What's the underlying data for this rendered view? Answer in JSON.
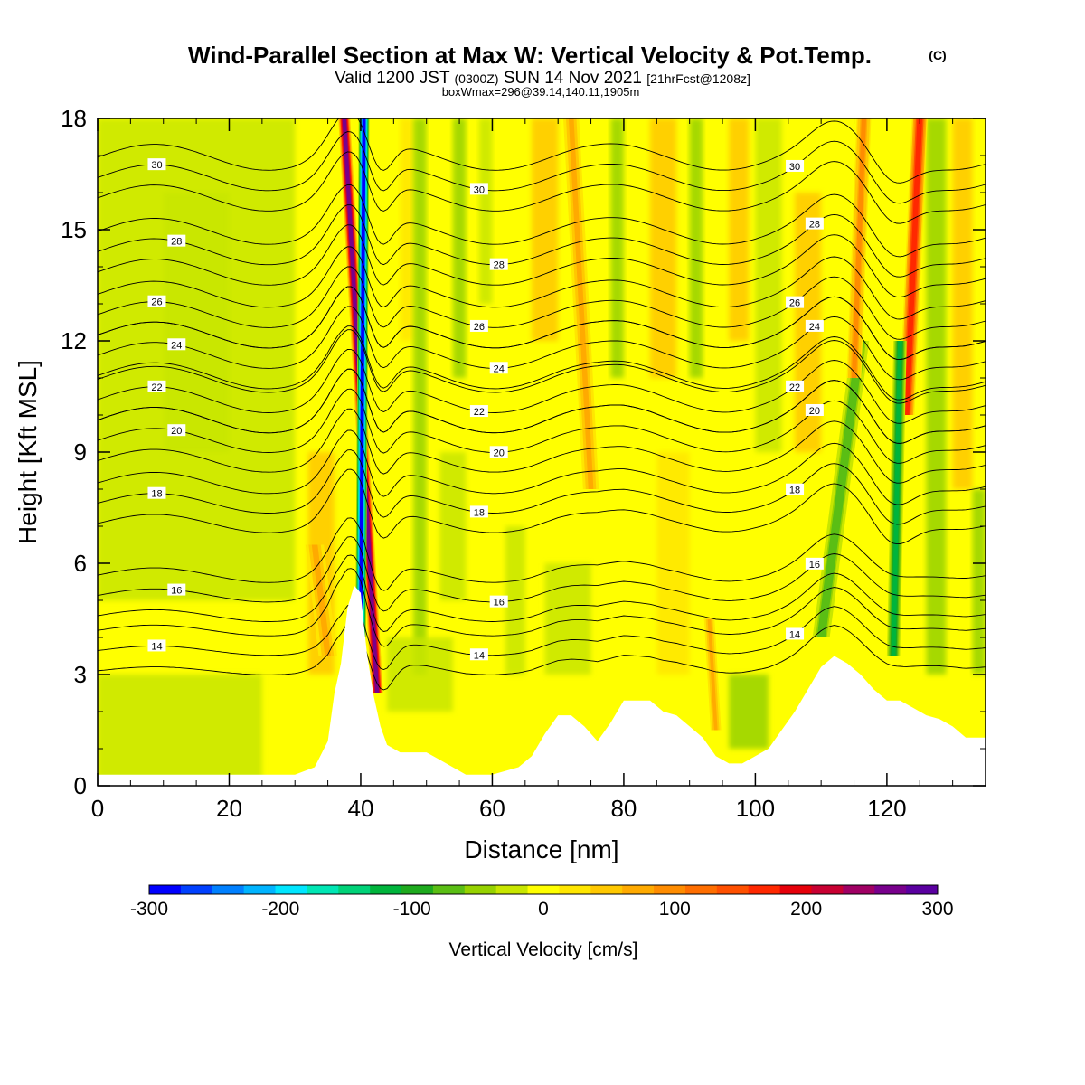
{
  "title": "Wind-Parallel Section at Max W: Vertical Velocity & Pot.Temp.",
  "title_mark": "(C)",
  "subtitle": {
    "valid": "Valid 1200 JST",
    "utc": "(0300Z)",
    "date": "SUN 14 Nov 2021",
    "fcst": "[21hrFcst@1208z]"
  },
  "boxline": "boxWmax=296@39.14,140.11,1905m",
  "chart_data": {
    "type": "heatmap",
    "xlabel": "Distance [nm]",
    "ylabel": "Height [Kft MSL]",
    "xlim": [
      0,
      135
    ],
    "ylim": [
      0,
      18
    ],
    "x_ticks": [
      "0",
      "20",
      "40",
      "60",
      "80",
      "100",
      "120"
    ],
    "x_tick_values": [
      0,
      20,
      40,
      60,
      80,
      100,
      120
    ],
    "y_ticks": [
      "0",
      "3",
      "6",
      "9",
      "12",
      "15",
      "18"
    ],
    "y_tick_values": [
      0,
      3,
      6,
      9,
      12,
      15,
      18
    ],
    "colorbar": {
      "label": "Vertical Velocity [cm/s]",
      "range": [
        -300,
        300
      ],
      "tick_labels": [
        "-300",
        "-200",
        "-100",
        "0",
        "100",
        "200",
        "300"
      ],
      "tick_values": [
        -300,
        -200,
        -100,
        0,
        100,
        200,
        300
      ],
      "colors": [
        "#0000ff",
        "#0040ff",
        "#0080ff",
        "#00b4ff",
        "#00e6ff",
        "#00e6b4",
        "#00d278",
        "#00b43c",
        "#1eaa1e",
        "#5abe14",
        "#96d200",
        "#c8e600",
        "#ffff00",
        "#ffe600",
        "#ffc800",
        "#ffaa00",
        "#ff8c00",
        "#ff6e00",
        "#ff5000",
        "#ff2800",
        "#e6000a",
        "#c80032",
        "#a00064",
        "#78008c",
        "#5a00a0"
      ]
    },
    "theta_contours": [
      {
        "label": "14",
        "base_height": 3.6
      },
      {
        "label": "16",
        "base_height": 5.1
      },
      {
        "label": "18",
        "base_height": 7.6
      },
      {
        "label": "20",
        "base_height": 9.3
      },
      {
        "label": "22",
        "base_height": 10.4
      },
      {
        "label": "24",
        "base_height": 11.6
      },
      {
        "label": "26",
        "base_height": 12.7
      },
      {
        "label": "28",
        "base_height": 14.4
      },
      {
        "label": "30",
        "base_height": 16.4
      }
    ],
    "terrain": {
      "distance": [
        0,
        26,
        30,
        33,
        35,
        36,
        37,
        38,
        39,
        40,
        40.5,
        41,
        42,
        43,
        44,
        45,
        46,
        50,
        52,
        54,
        56,
        58,
        60,
        62,
        64,
        66,
        68,
        70,
        72,
        74,
        76,
        78,
        80,
        82,
        84,
        86,
        88,
        90,
        92,
        94,
        96,
        98,
        100,
        102,
        104,
        106,
        108,
        110,
        112,
        114,
        116,
        118,
        120,
        122,
        124,
        126,
        128,
        130,
        132,
        135
      ],
      "height": [
        0.3,
        0.3,
        0.3,
        0.5,
        1.2,
        2.5,
        3.3,
        4.8,
        5.4,
        5.2,
        4.3,
        3.5,
        2.4,
        1.6,
        1.1,
        1.0,
        0.9,
        0.9,
        0.7,
        0.5,
        0.3,
        0.3,
        0.3,
        0.4,
        0.5,
        0.8,
        1.4,
        1.9,
        1.9,
        1.6,
        1.2,
        1.7,
        2.3,
        2.3,
        2.3,
        2.0,
        1.9,
        1.6,
        1.3,
        0.8,
        0.6,
        0.6,
        0.8,
        1.0,
        1.5,
        2.0,
        2.6,
        3.2,
        3.5,
        3.3,
        3.0,
        2.6,
        2.3,
        2.3,
        2.1,
        1.9,
        1.8,
        1.6,
        1.3,
        1.3
      ]
    },
    "updraft_bands": [
      {
        "x_bottom": 42.5,
        "x_top": 37.5,
        "z_bottom": 2.5,
        "z_top": 18,
        "w": 260,
        "width": 0.9
      },
      {
        "x_bottom": 40.0,
        "x_top": 40.5,
        "z_bottom": 4.0,
        "z_top": 18,
        "w": -280,
        "width": 0.8
      },
      {
        "x_bottom": 123,
        "x_top": 125,
        "z_bottom": 10,
        "z_top": 18,
        "w": 170,
        "width": 1.2
      },
      {
        "x_bottom": 121,
        "x_top": 122,
        "z_bottom": 3.5,
        "z_top": 12,
        "w": -110,
        "width": 1.0
      },
      {
        "x_bottom": 110,
        "x_top": 116,
        "z_bottom": 4,
        "z_top": 12,
        "w": -80,
        "width": 1.3
      },
      {
        "x_bottom": 115,
        "x_top": 116.5,
        "z_bottom": 11,
        "z_top": 18,
        "w": 90,
        "width": 1.1
      },
      {
        "x_bottom": 75,
        "x_top": 72,
        "z_bottom": 8,
        "z_top": 18,
        "w": 60,
        "width": 1.2
      },
      {
        "x_bottom": 35,
        "x_top": 33,
        "z_bottom": 3.5,
        "z_top": 6.5,
        "w": 60,
        "width": 1.4
      },
      {
        "x_bottom": 94,
        "x_top": 93,
        "z_bottom": 1.5,
        "z_top": 4.5,
        "w": 70,
        "width": 0.8
      }
    ]
  }
}
